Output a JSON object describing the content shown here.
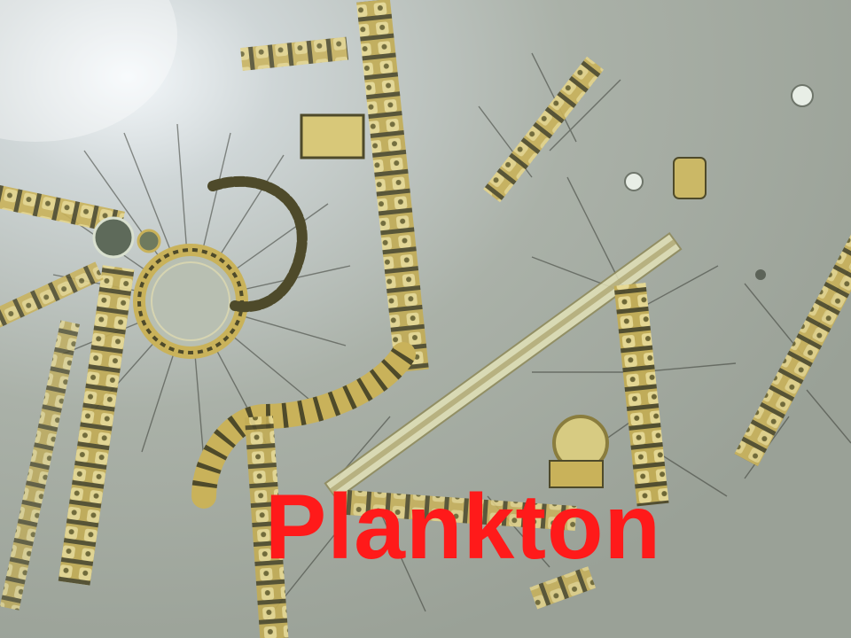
{
  "caption": {
    "text": "Plankton",
    "color": "#ff1a1a"
  },
  "colors": {
    "background": "#a9b0a6",
    "cell_gold": "#c9b25a",
    "cell_dark": "#4e4a2a",
    "spine": "#3a3d36",
    "glare": "#ffffff"
  }
}
